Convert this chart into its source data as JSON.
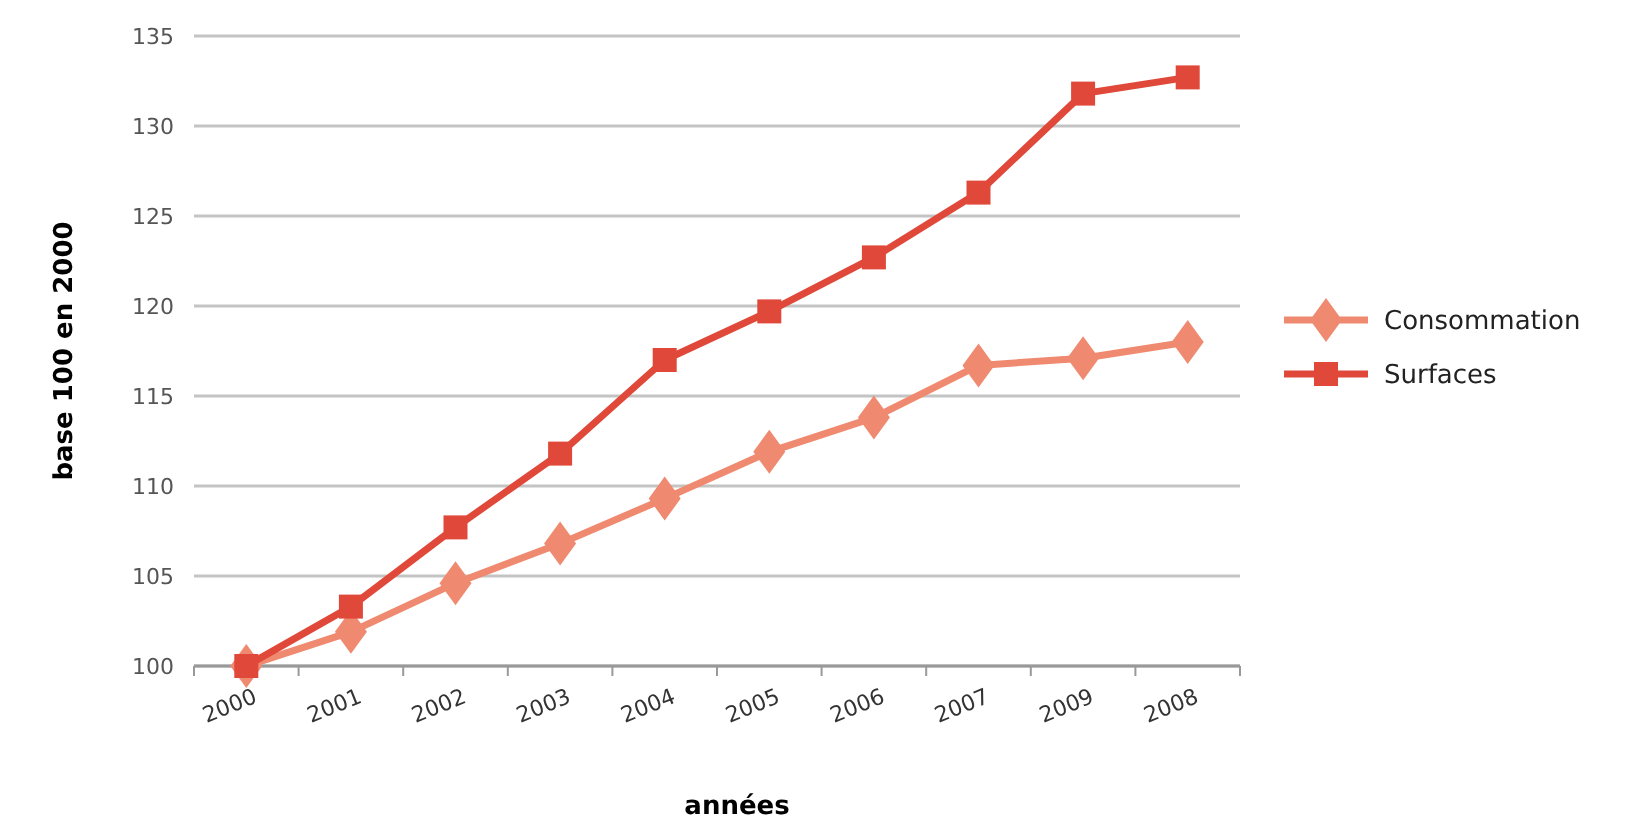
{
  "chart_data": {
    "type": "line",
    "xlabel": "années",
    "ylabel": "base 100 en 2000",
    "categories": [
      "2000",
      "2001",
      "2002",
      "2003",
      "2004",
      "2005",
      "2006",
      "2007",
      "2009",
      "2008"
    ],
    "series": [
      {
        "name": "Consommation",
        "color": "#ef8a70",
        "marker": "diamond",
        "values": [
          100,
          101.9,
          104.6,
          106.8,
          109.3,
          111.9,
          113.8,
          116.7,
          117.1,
          118
        ]
      },
      {
        "name": "Surfaces",
        "color": "#e0493a",
        "marker": "square",
        "values": [
          100,
          103.3,
          107.7,
          111.8,
          117,
          119.7,
          122.7,
          126.3,
          131.8,
          132.7
        ]
      }
    ],
    "ylim": [
      100,
      135
    ],
    "yticks": [
      100,
      105,
      110,
      115,
      120,
      125,
      130,
      135
    ],
    "grid": "y",
    "legend": "right"
  }
}
